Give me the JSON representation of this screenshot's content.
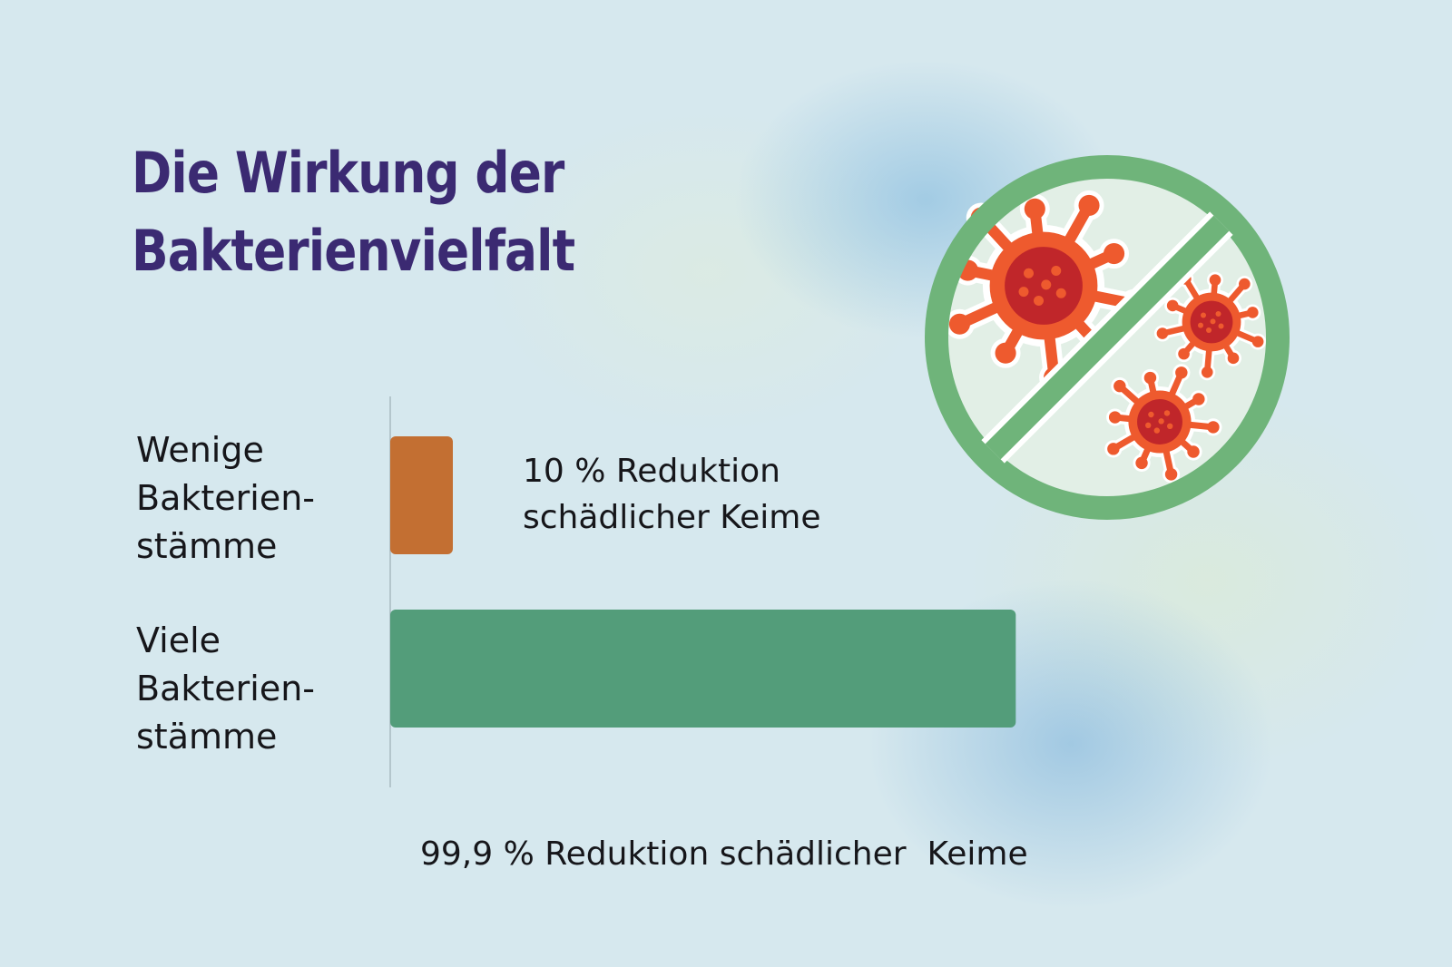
{
  "colors": {
    "title": "#3b2a72",
    "bar_few": "#c36f32",
    "bar_many": "#539d7a",
    "no_sign": "#6fb47a",
    "virus": "#ee5a2e",
    "virus_core": "#c0262a"
  },
  "icon": "no-bacteria-prohibition-icon",
  "chart_data": {
    "type": "bar",
    "orientation": "horizontal",
    "title_lines": [
      "Die Wirkung der",
      "Bakterienvielfalt"
    ],
    "categories": [
      {
        "lines": [
          "Wenige",
          "Bakterien-",
          "stämme"
        ]
      },
      {
        "lines": [
          "Viele",
          "Bakterien-",
          "stämme"
        ]
      }
    ],
    "values": [
      10,
      99.9
    ],
    "unit": "%",
    "value_labels": [
      [
        "10 % Reduktion",
        "schädlicher Keime"
      ],
      [
        "99,9 % Reduktion schädlicher  Keime"
      ]
    ],
    "xlim": [
      0,
      100
    ],
    "grid": false,
    "legend": "none"
  }
}
